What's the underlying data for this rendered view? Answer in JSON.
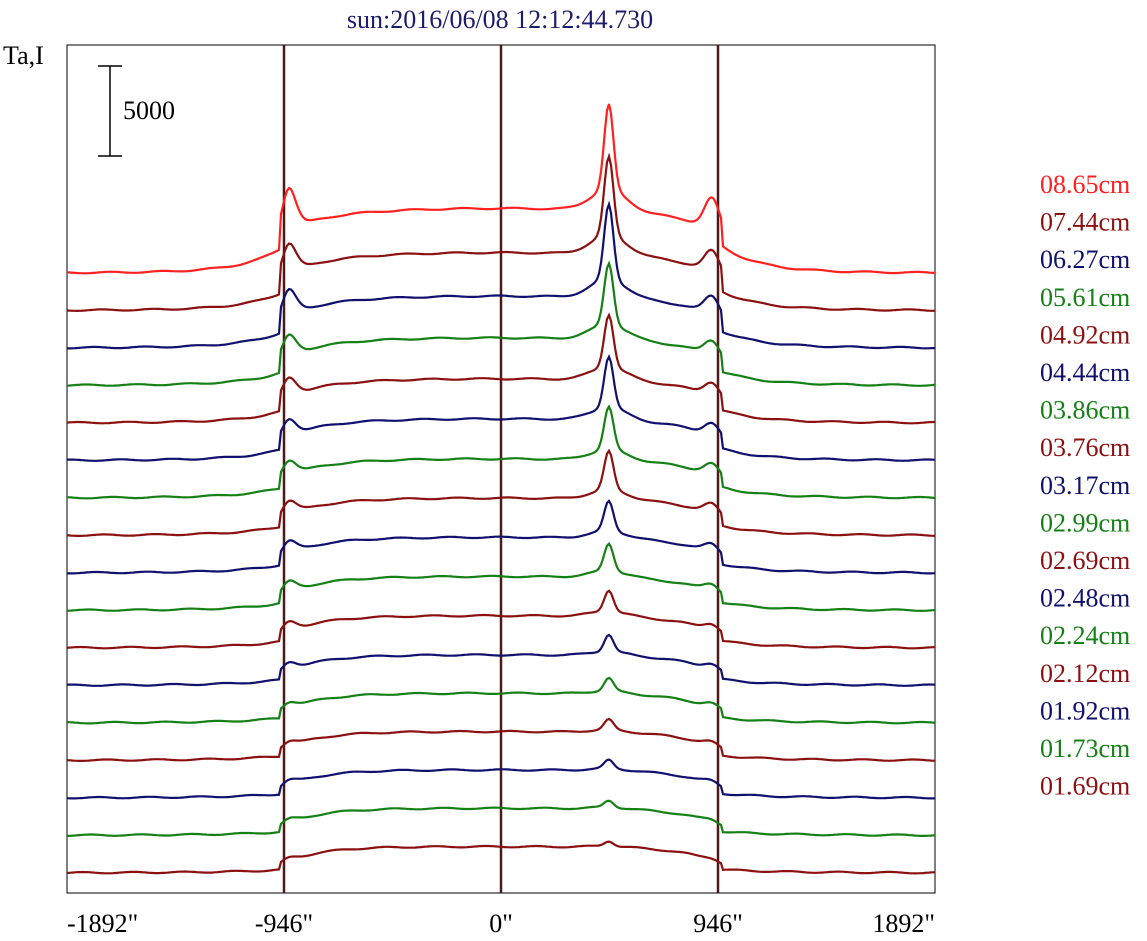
{
  "chart_data": {
    "type": "line",
    "title": "sun:2016/06/08 12:12:44.730",
    "ylabel": "Ta,I",
    "x_ticks": [
      "-1892\"",
      "-946\"",
      "0\"",
      "946\"",
      "1892\""
    ],
    "x_tick_values": [
      -1892,
      -946,
      0,
      946,
      1892
    ],
    "xlim": [
      -1892,
      1892
    ],
    "vertical_reference_lines": [
      -946,
      0,
      946
    ],
    "scale_bar_label": "5000",
    "scale_bar_value": 5000,
    "series": [
      {
        "name": "08.65cm",
        "color": "#ff2020",
        "peak": 1.0,
        "limb": 0.55,
        "center": 0.58
      },
      {
        "name": "07.44cm",
        "color": "#8b1010",
        "peak": 0.92,
        "limb": 0.38,
        "center": 0.5
      },
      {
        "name": "06.27cm",
        "color": "#10106e",
        "peak": 0.88,
        "limb": 0.33,
        "center": 0.43
      },
      {
        "name": "05.61cm",
        "color": "#158015",
        "peak": 0.72,
        "limb": 0.27,
        "center": 0.38
      },
      {
        "name": "04.92cm",
        "color": "#8b1010",
        "peak": 0.62,
        "limb": 0.24,
        "center": 0.34
      },
      {
        "name": "04.44cm",
        "color": "#10106e",
        "peak": 0.6,
        "limb": 0.22,
        "center": 0.31
      },
      {
        "name": "03.86cm",
        "color": "#158015",
        "peak": 0.5,
        "limb": 0.2,
        "center": 0.28
      },
      {
        "name": "03.76cm",
        "color": "#8b1010",
        "peak": 0.45,
        "limb": 0.18,
        "center": 0.26
      },
      {
        "name": "03.17cm",
        "color": "#10106e",
        "peak": 0.35,
        "limb": 0.16,
        "center": 0.24
      },
      {
        "name": "02.99cm",
        "color": "#158015",
        "peak": 0.32,
        "limb": 0.14,
        "center": 0.22
      },
      {
        "name": "02.69cm",
        "color": "#8b1010",
        "peak": 0.25,
        "limb": 0.12,
        "center": 0.2
      },
      {
        "name": "02.48cm",
        "color": "#10106e",
        "peak": 0.2,
        "limb": 0.1,
        "center": 0.18
      },
      {
        "name": "02.24cm",
        "color": "#158015",
        "peak": 0.15,
        "limb": 0.08,
        "center": 0.17
      },
      {
        "name": "02.12cm",
        "color": "#8b1010",
        "peak": 0.12,
        "limb": 0.07,
        "center": 0.16
      },
      {
        "name": "01.92cm",
        "color": "#10106e",
        "peak": 0.1,
        "limb": 0.06,
        "center": 0.15
      },
      {
        "name": "01.73cm",
        "color": "#158015",
        "peak": 0.08,
        "limb": 0.05,
        "center": 0.14
      },
      {
        "name": "01.69cm",
        "color": "#8b1010",
        "peak": 0.06,
        "limb": 0.04,
        "center": 0.13
      }
    ]
  }
}
